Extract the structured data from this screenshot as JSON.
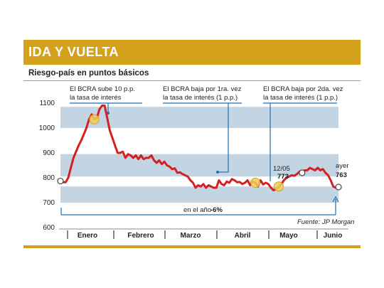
{
  "header": {
    "title": "IDA Y VUELTA",
    "subtitle": "Riesgo-país en puntos básicos"
  },
  "chart_data": {
    "type": "line",
    "title": "IDA Y VUELTA",
    "subtitle": "Riesgo-país en puntos básicos",
    "ylim": [
      600,
      1100
    ],
    "yticks": [
      600,
      700,
      800,
      900,
      1000,
      1100
    ],
    "months": [
      "Enero",
      "Febrero",
      "Marzo",
      "Abril",
      "Mayo",
      "Junio"
    ],
    "grid": false,
    "series": [
      {
        "name": "",
        "color": "#d42020",
        "values": [
          787,
          782,
          782,
          800,
          840,
          880,
          905,
          930,
          950,
          975,
          1000,
          1035,
          1055,
          1035,
          1040,
          1075,
          1090,
          1090,
          1040,
          990,
          960,
          930,
          900,
          900,
          905,
          880,
          895,
          890,
          880,
          890,
          875,
          890,
          875,
          880,
          880,
          890,
          870,
          860,
          870,
          855,
          865,
          850,
          845,
          835,
          838,
          820,
          822,
          815,
          810,
          805,
          790,
          780,
          760,
          770,
          765,
          775,
          760,
          770,
          765,
          760,
          760,
          790,
          775,
          770,
          785,
          780,
          795,
          790,
          782,
          783,
          775,
          780,
          790,
          770,
          785,
          780,
          765,
          790,
          773,
          780,
          775,
          760,
          750,
          755,
          765,
          775,
          790,
          800,
          805,
          810,
          808,
          815,
          825,
          820,
          830,
          830,
          840,
          835,
          830,
          840,
          830,
          835,
          820,
          810,
          790,
          765,
          760,
          763
        ]
      }
    ],
    "bands": [
      [
        1000,
        1085
      ],
      [
        805,
        895
      ],
      [
        700,
        765
      ]
    ],
    "markers": [
      {
        "index": 0,
        "type": "open"
      },
      {
        "index": 13,
        "type": "highlight"
      },
      {
        "index": 75,
        "type": "highlight"
      },
      {
        "index": 84,
        "type": "highlight"
      },
      {
        "index": 93,
        "type": "open"
      },
      {
        "index": 107,
        "type": "open"
      }
    ],
    "annotations": {
      "event1_line1": "El BCRA sube 10 p.p.",
      "event1_line2": "la tasa de interés",
      "event2_line1": "El BCRA baja por 1ra. vez",
      "event2_line2": "la tasa de interés (1 p.p.)",
      "event3_line1": "El BCRA baja por 2da. vez",
      "event3_line2": "la tasa de interés (1 p.p.)",
      "point_date": "12/05",
      "point_value": "773",
      "yesterday_label": "ayer",
      "yesterday_value": "763",
      "ytd_label": "en el año",
      "ytd_value": "-6%",
      "source": "Fuente: JP Morgan"
    }
  }
}
